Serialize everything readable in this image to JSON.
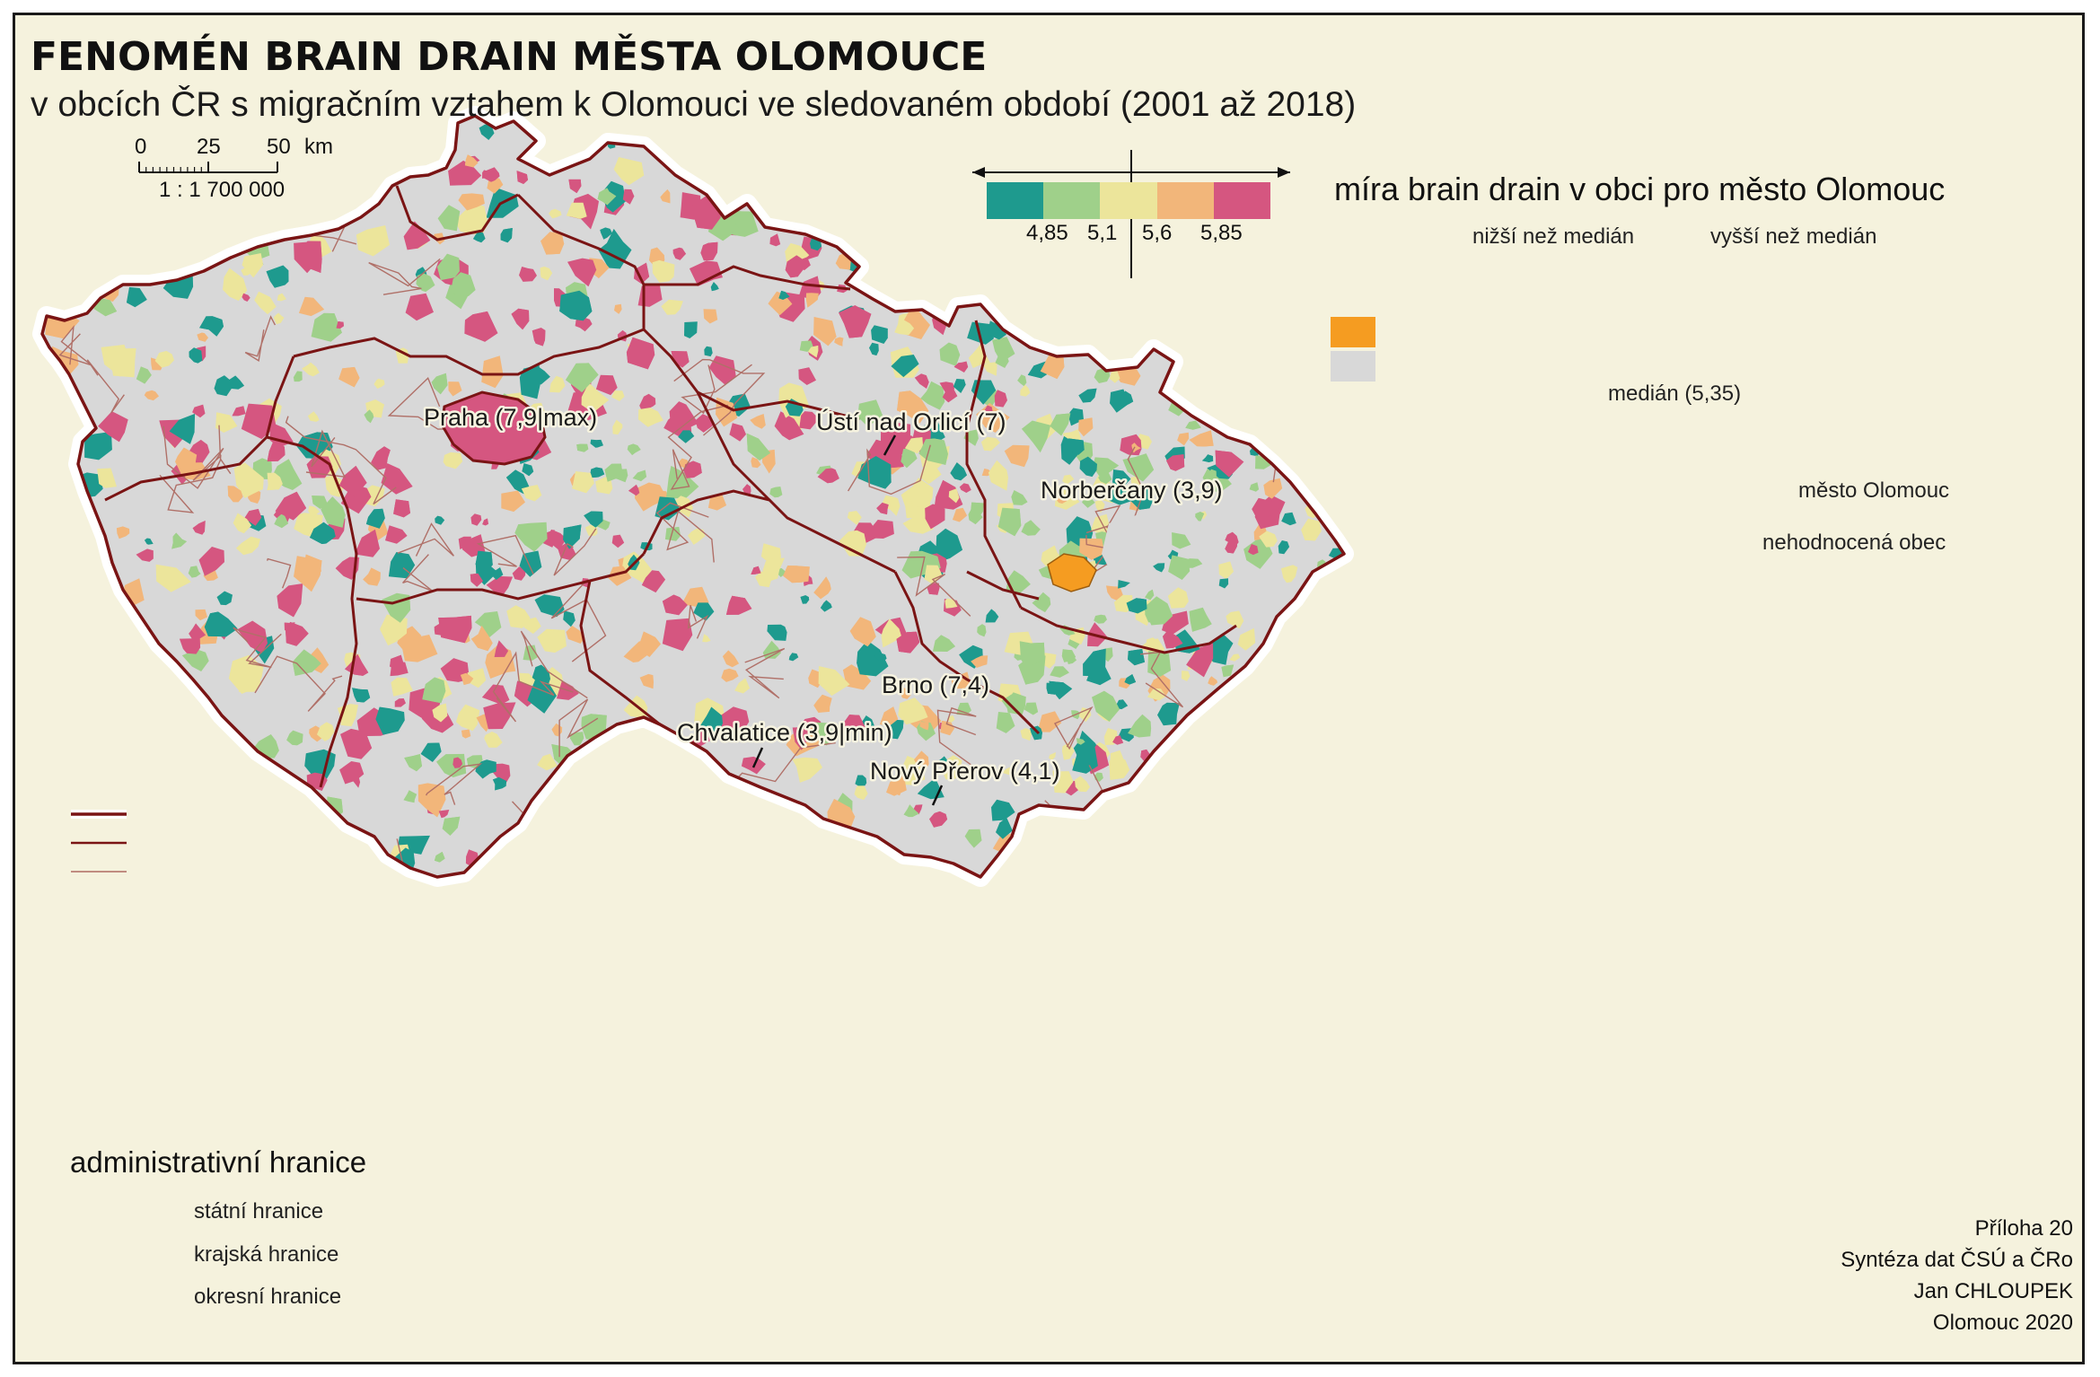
{
  "title": "FENOMÉN BRAIN DRAIN MĚSTA OLOMOUCE",
  "subtitle": "v obcích ČR s migračním vztahem k Olomouci ve sledovaném období (2001 až 2018)",
  "scalebar": {
    "ticks": [
      "0",
      "25",
      "50"
    ],
    "unit": "km",
    "ratio": "1 : 1 700 000"
  },
  "legend": {
    "title": "míra brain drain v obci pro město Olomouc",
    "lower_label": "nižší než medián",
    "higher_label": "vyšší než medián",
    "class_colors": [
      "#1e9a8e",
      "#9fd08a",
      "#ece59b",
      "#ece59b",
      "#f2b67a",
      "#d55680"
    ],
    "breaks": [
      "4,85",
      "5,1",
      "5,6",
      "5,85"
    ],
    "median_label": "medián (5,35)",
    "olomouc_label": "město Olomouc",
    "olomouc_color": "#f59c21",
    "unassessed_label": "nehodnocená obec",
    "unassessed_color": "#d8d8d8"
  },
  "places": [
    {
      "label": "Praha (7,9|max)"
    },
    {
      "label": "Ústí nad Orlicí (7)"
    },
    {
      "label": "Norberčany (3,9)"
    },
    {
      "label": "Brno (7,4)"
    },
    {
      "label": "Chvalatice (3,9|min)"
    },
    {
      "label": "Nový Přerov (4,1)"
    }
  ],
  "admin": {
    "title": "administrativní hranice",
    "items": [
      {
        "label": "státní hranice",
        "color": "#7a1414"
      },
      {
        "label": "krajská hranice",
        "color": "#7a1414"
      },
      {
        "label": "okresní hranice",
        "color": "#a0504a"
      }
    ]
  },
  "credits": [
    "Příloha 20",
    "Syntéza dat ČSÚ a ČRo",
    "Jan CHLOUPEK",
    "Olomouc 2020"
  ]
}
